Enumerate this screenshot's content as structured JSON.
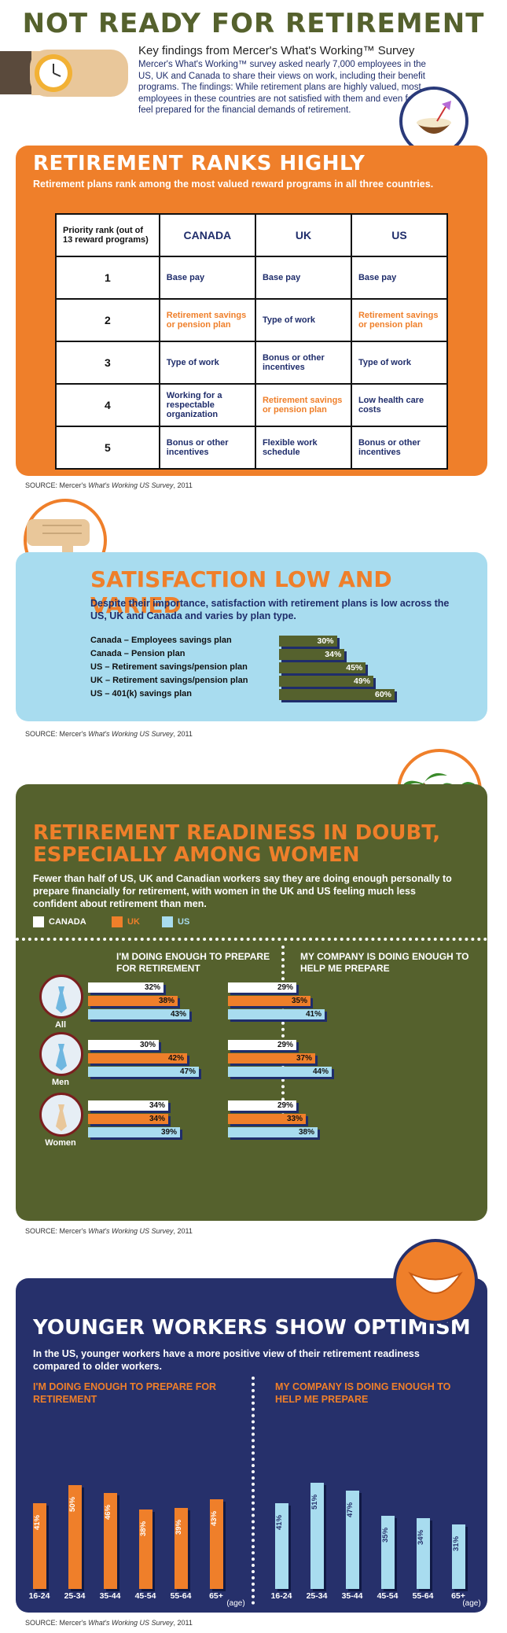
{
  "title": "NOT READY FOR RETIREMENT",
  "intro": {
    "heading": "Key findings from Mercer's What's Working™ Survey",
    "body": "Mercer's What's Working™ survey asked nearly 7,000 employees in the US, UK and Canada to share their views on work, including their benefit programs. The findings: While retirement plans are highly valued, most employees in these countries are not satisfied with them and even fewer feel prepared for the financial demands of retirement."
  },
  "source": {
    "prefix": "SOURCE: Mercer's ",
    "name": "What's Working US Survey",
    "suffix": ", 2011"
  },
  "colors": {
    "orange": "#ef7f2a",
    "olive": "#55612d",
    "navy": "#26306b",
    "lightblue": "#a8dcef",
    "white": "#ffffff"
  },
  "icons": [
    "watch-icon",
    "coconut-drink-icon",
    "thumbs-down-icon",
    "palm-hammock-icon",
    "smile-icon",
    "tie-icon"
  ],
  "ranks": {
    "title": "RETIREMENT RANKS HIGHLY",
    "subtitle": "Retirement plans rank among the most valued reward programs in all three countries.",
    "corner": "Priority rank (out of 13 reward programs)",
    "columns": [
      "CANADA",
      "UK",
      "US"
    ],
    "rows": [
      {
        "rank": "1",
        "cells": [
          "Base pay",
          "Base pay",
          "Base pay"
        ],
        "hl": [
          false,
          false,
          false
        ]
      },
      {
        "rank": "2",
        "cells": [
          "Retirement savings or pension plan",
          "Type of work",
          "Retirement savings or pension plan"
        ],
        "hl": [
          true,
          false,
          true
        ]
      },
      {
        "rank": "3",
        "cells": [
          "Type of work",
          "Bonus or other incentives",
          "Type of work"
        ],
        "hl": [
          false,
          false,
          false
        ]
      },
      {
        "rank": "4",
        "cells": [
          "Working for a respectable organization",
          "Retirement savings or pension plan",
          "Low health care costs"
        ],
        "hl": [
          false,
          true,
          false
        ]
      },
      {
        "rank": "5",
        "cells": [
          "Bonus or other incentives",
          "Flexible work schedule",
          "Bonus or other incentives"
        ],
        "hl": [
          false,
          false,
          false
        ]
      }
    ]
  },
  "satisfaction": {
    "title": "SATISFACTION LOW AND VARIED",
    "subtitle": "Despite their importance, satisfaction with retirement plans is low across the US, UK and Canada and varies by plan type."
  },
  "readiness": {
    "title": "RETIREMENT READINESS IN DOUBT, ESPECIALLY AMONG WOMEN",
    "subtitle": "Fewer than half of US, UK and Canadian workers say they are doing enough personally to prepare financially for retirement, with women in the UK and US feeling much less confident about retirement than men.",
    "legend": [
      "CANADA",
      "UK",
      "US"
    ],
    "col_left": "I'M DOING ENOUGH TO PREPARE FOR RETIREMENT",
    "col_right": "MY COMPANY IS DOING ENOUGH TO HELP ME PREPARE"
  },
  "younger": {
    "title": "YOUNGER WORKERS SHOW OPTIMISM",
    "subtitle": "In the US, younger workers have a more positive view of their retirement readiness compared to older workers.",
    "head_left": "I'M DOING ENOUGH TO PREPARE FOR RETIREMENT",
    "head_right": "MY COMPANY IS DOING ENOUGH TO HELP ME PREPARE",
    "age_note": "(age)"
  },
  "chart_data": [
    {
      "type": "bar",
      "orientation": "horizontal",
      "categories": [
        "Canada – Employees savings plan",
        "Canada – Pension plan",
        "US – Retirement savings/pension plan",
        "UK – Retirement savings/pension plan",
        "US – 401(k) savings plan"
      ],
      "values": [
        30,
        34,
        45,
        49,
        60
      ],
      "value_labels": [
        "30%",
        "34%",
        "45%",
        "49%",
        "60%"
      ]
    },
    {
      "type": "bar",
      "orientation": "horizontal",
      "groups": [
        "All",
        "Men",
        "Women"
      ],
      "series": [
        {
          "name": "CANADA",
          "doing_enough": [
            32,
            30,
            34
          ],
          "company_enough": [
            29,
            29,
            29
          ]
        },
        {
          "name": "UK",
          "doing_enough": [
            38,
            42,
            34
          ],
          "company_enough": [
            35,
            37,
            33
          ]
        },
        {
          "name": "US",
          "doing_enough": [
            43,
            47,
            39
          ],
          "company_enough": [
            41,
            44,
            38
          ]
        }
      ]
    },
    {
      "type": "bar",
      "categories": [
        "16-24",
        "25-34",
        "35-44",
        "45-54",
        "55-64",
        "65+"
      ],
      "series": [
        {
          "name": "I'M DOING ENOUGH TO PREPARE FOR RETIREMENT",
          "values": [
            41,
            50,
            46,
            38,
            39,
            43
          ]
        },
        {
          "name": "MY COMPANY IS DOING ENOUGH TO HELP ME PREPARE",
          "values": [
            41,
            51,
            47,
            35,
            34,
            31
          ]
        }
      ]
    }
  ]
}
